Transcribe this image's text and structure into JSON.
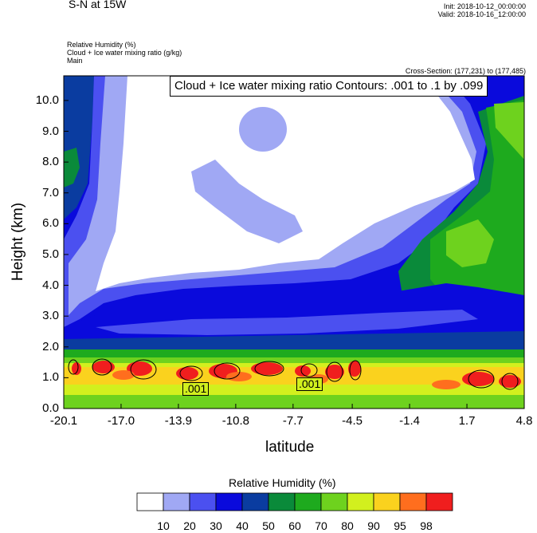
{
  "header": {
    "title": "S-N at 15W",
    "init": "Init: 2018-10-12_00:00:00",
    "valid": "Valid: 2018-10-16_12:00:00",
    "field1": "Relative Humidity   (%)",
    "field2": "Cloud + Ice water mixing ratio   (g/kg)",
    "field3": "Main",
    "cross_section": "Cross-Section: (177,231) to (177,485)"
  },
  "chart_data": {
    "type": "heatmap",
    "title": "Cloud + Ice water mixing ratio Contours: .001 to .1 by .099",
    "xlabel": "latitude",
    "ylabel": "Height (km)",
    "x_ticks": [
      "-20.1",
      "-17.0",
      "-13.9",
      "-10.8",
      "-7.7",
      "-4.5",
      "-1.4",
      "1.7",
      "4.8"
    ],
    "y_ticks": [
      "0.0",
      "1.0",
      "2.0",
      "3.0",
      "4.0",
      "5.0",
      "6.0",
      "7.0",
      "8.0",
      "9.0",
      "10.0"
    ],
    "xlim": [
      -20.1,
      4.8
    ],
    "ylim": [
      0.0,
      10.8
    ],
    "contour_labels": [
      ".001",
      ".001"
    ],
    "colorbar": {
      "title": "Relative Humidity  (%)",
      "levels": [
        "10",
        "20",
        "30",
        "40",
        "50",
        "60",
        "70",
        "80",
        "90",
        "95",
        "98"
      ],
      "colors": [
        "#ffffff",
        "#a0a8f4",
        "#4b50f0",
        "#0a0adc",
        "#0a3ca0",
        "#0a8a3a",
        "#1eaa1e",
        "#6ed21e",
        "#d2f01e",
        "#fad21e",
        "#ff6e1e",
        "#f01e1e"
      ]
    }
  }
}
